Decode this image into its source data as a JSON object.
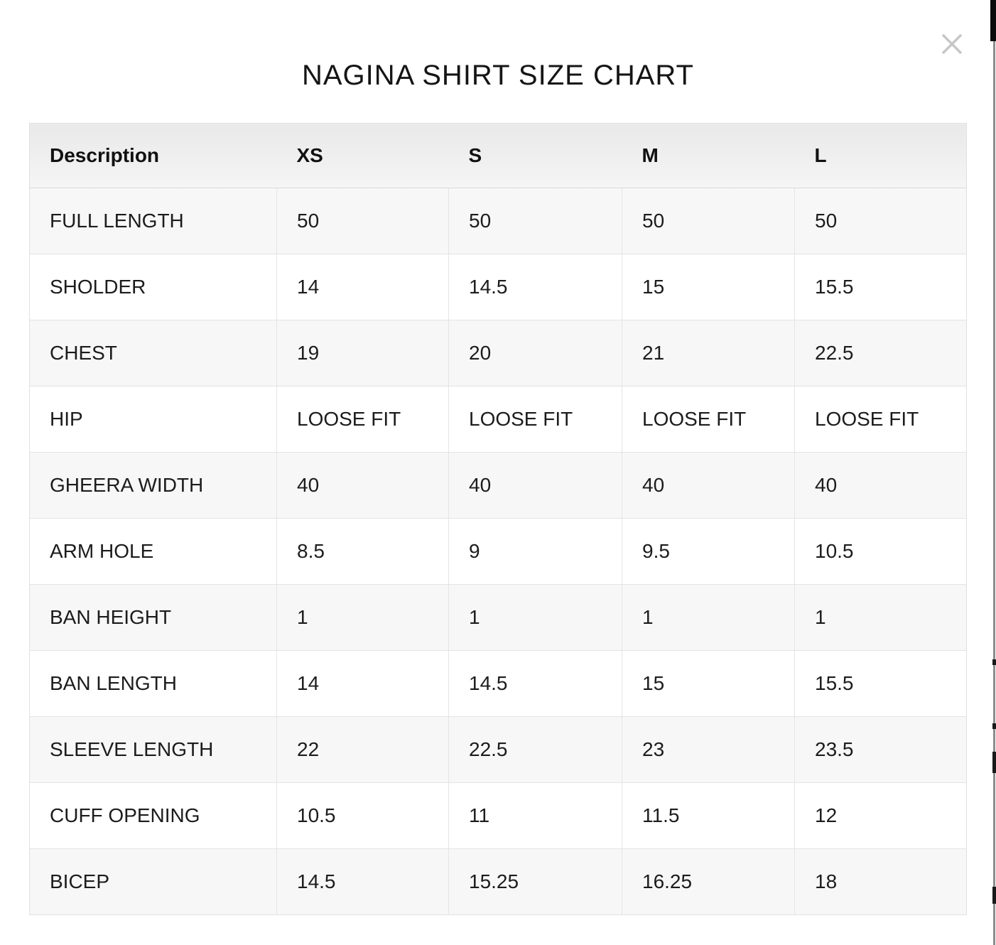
{
  "modal": {
    "title": "NAGINA SHIRT SIZE CHART",
    "icons": {
      "close": "close-icon"
    }
  },
  "table": {
    "columns": [
      "Description",
      "XS",
      "S",
      "M",
      "L"
    ],
    "rows": [
      {
        "label": "FULL LENGTH",
        "values": [
          "50",
          "50",
          "50",
          "50"
        ]
      },
      {
        "label": "SHOLDER",
        "values": [
          "14",
          "14.5",
          "15",
          "15.5"
        ]
      },
      {
        "label": "CHEST",
        "values": [
          "19",
          "20",
          "21",
          "22.5"
        ]
      },
      {
        "label": "HIP",
        "values": [
          "LOOSE FIT",
          "LOOSE FIT",
          "LOOSE FIT",
          "LOOSE FIT"
        ]
      },
      {
        "label": "GHEERA WIDTH",
        "values": [
          "40",
          "40",
          "40",
          "40"
        ]
      },
      {
        "label": "ARM HOLE",
        "values": [
          "8.5",
          "9",
          "9.5",
          "10.5"
        ]
      },
      {
        "label": "BAN HEIGHT",
        "values": [
          "1",
          "1",
          "1",
          "1"
        ]
      },
      {
        "label": "BAN LENGTH",
        "values": [
          "14",
          "14.5",
          "15",
          "15.5"
        ]
      },
      {
        "label": "SLEEVE LENGTH",
        "values": [
          "22",
          "22.5",
          "23",
          "23.5"
        ]
      },
      {
        "label": "CUFF OPENING",
        "values": [
          "10.5",
          "11",
          "11.5",
          "12"
        ]
      },
      {
        "label": "BICEP",
        "values": [
          "14.5",
          "15.25",
          "16.25",
          "18"
        ]
      }
    ]
  },
  "colors": {
    "header_gradient_top": "#e9e9e9",
    "header_gradient_bottom": "#f5f5f5",
    "row_stripe": "#f7f7f7",
    "table_border": "#e4e4e4",
    "close_icon": "#c6c6c6",
    "edge_bar": "#0b0b0b",
    "scrollbar": "#8d8d8d"
  }
}
